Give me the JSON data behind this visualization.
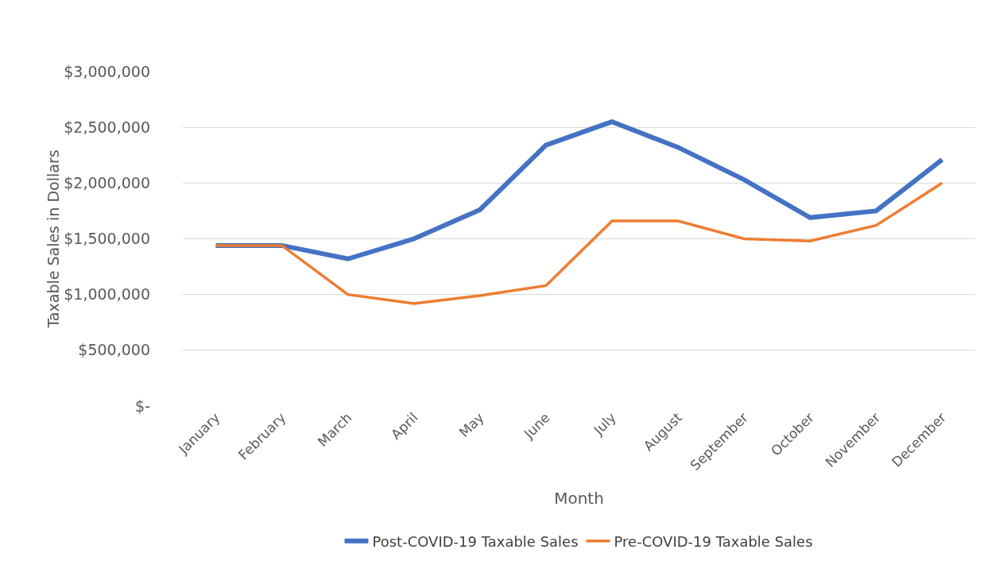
{
  "chart_data": {
    "type": "line",
    "xlabel": "Month",
    "ylabel": "Taxable Sales in Dollars",
    "categories": [
      "January",
      "February",
      "March",
      "April",
      "May",
      "June",
      "July",
      "August",
      "September",
      "October",
      "November",
      "December"
    ],
    "series": [
      {
        "name": "Post-COVID-19 Taxable Sales",
        "color": "#4472c4",
        "values": [
          1440000,
          1440000,
          1320000,
          1500000,
          1760000,
          2340000,
          2550000,
          2320000,
          2030000,
          1690000,
          1750000,
          2210000
        ]
      },
      {
        "name": "Pre-COVID-19 Taxable Sales",
        "color": "#ed7d31",
        "values": [
          1440000,
          1440000,
          1000000,
          920000,
          990000,
          1080000,
          1660000,
          1660000,
          1500000,
          1480000,
          1620000,
          2000000
        ]
      }
    ],
    "ylim": [
      0,
      3000000
    ],
    "yticks": [
      {
        "value": 0,
        "label": "$-"
      },
      {
        "value": 500000,
        "label": "$500,000"
      },
      {
        "value": 1000000,
        "label": "$1,000,000"
      },
      {
        "value": 1500000,
        "label": "$1,500,000"
      },
      {
        "value": 2000000,
        "label": "$2,000,000"
      },
      {
        "value": 2500000,
        "label": "$2,500,000"
      },
      {
        "value": 3000000,
        "label": "$3,000,000"
      }
    ],
    "grid": "y",
    "legend": "bottom",
    "marker": "none",
    "line_style": "solid"
  }
}
